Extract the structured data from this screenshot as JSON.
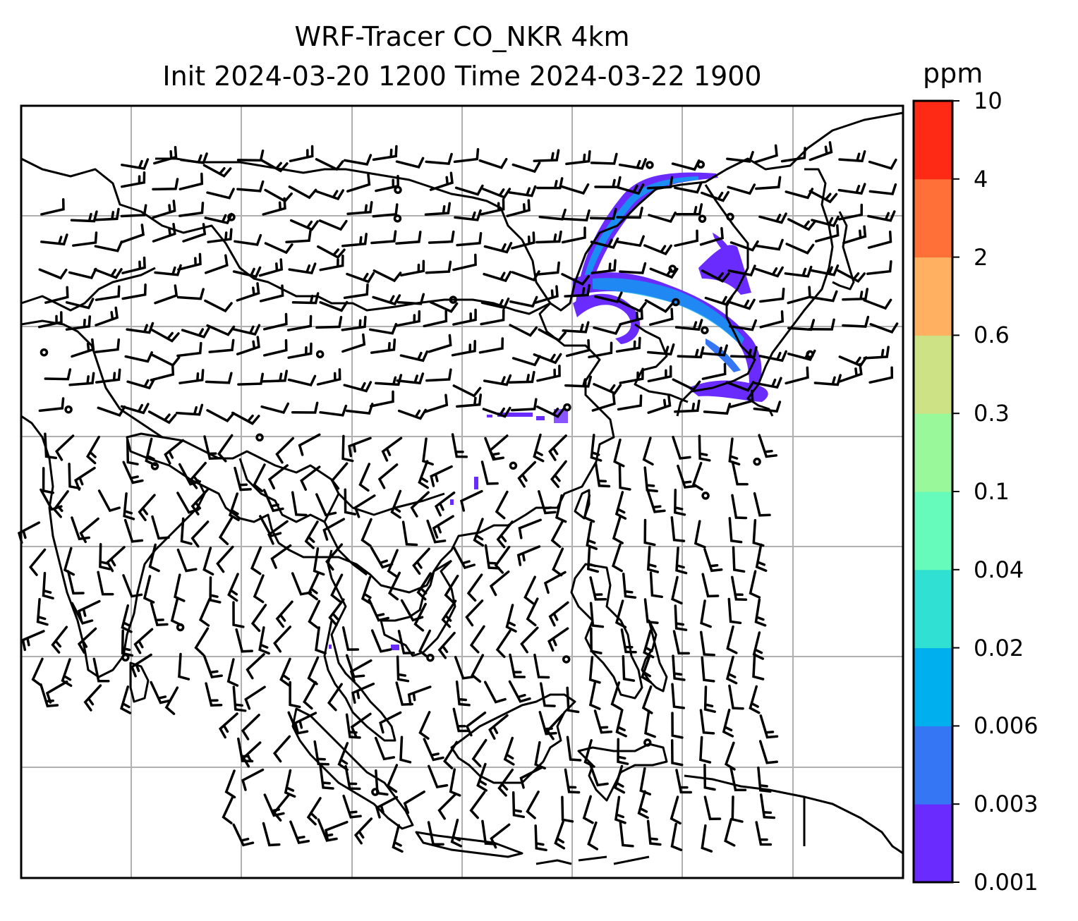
{
  "title": {
    "line1": "WRF-Tracer CO_NKR 4km",
    "line2": "Init 2024-03-20 1200 Time 2024-03-22 1900"
  },
  "colorbar": {
    "unit": "ppm",
    "ticks": [
      "0.001",
      "0.003",
      "0.006",
      "0.02",
      "0.04",
      "0.1",
      "0.3",
      "0.6",
      "2",
      "4",
      "10"
    ],
    "colors": [
      "#6a2bff",
      "#3576f4",
      "#00b0ee",
      "#30e0d2",
      "#66fbbb",
      "#99f899",
      "#cde185",
      "#ffb060",
      "#ff7038",
      "#ff2a16"
    ]
  },
  "map": {
    "gridlines": true,
    "coastline_color": "#000000",
    "grid_color": "#b0b0b0",
    "tracer_color_primary": "#6a2bff",
    "tracer_color_secondary": "#3576f4",
    "tracer_color_tertiary": "#00b0ee",
    "wind_barbs": "black"
  }
}
